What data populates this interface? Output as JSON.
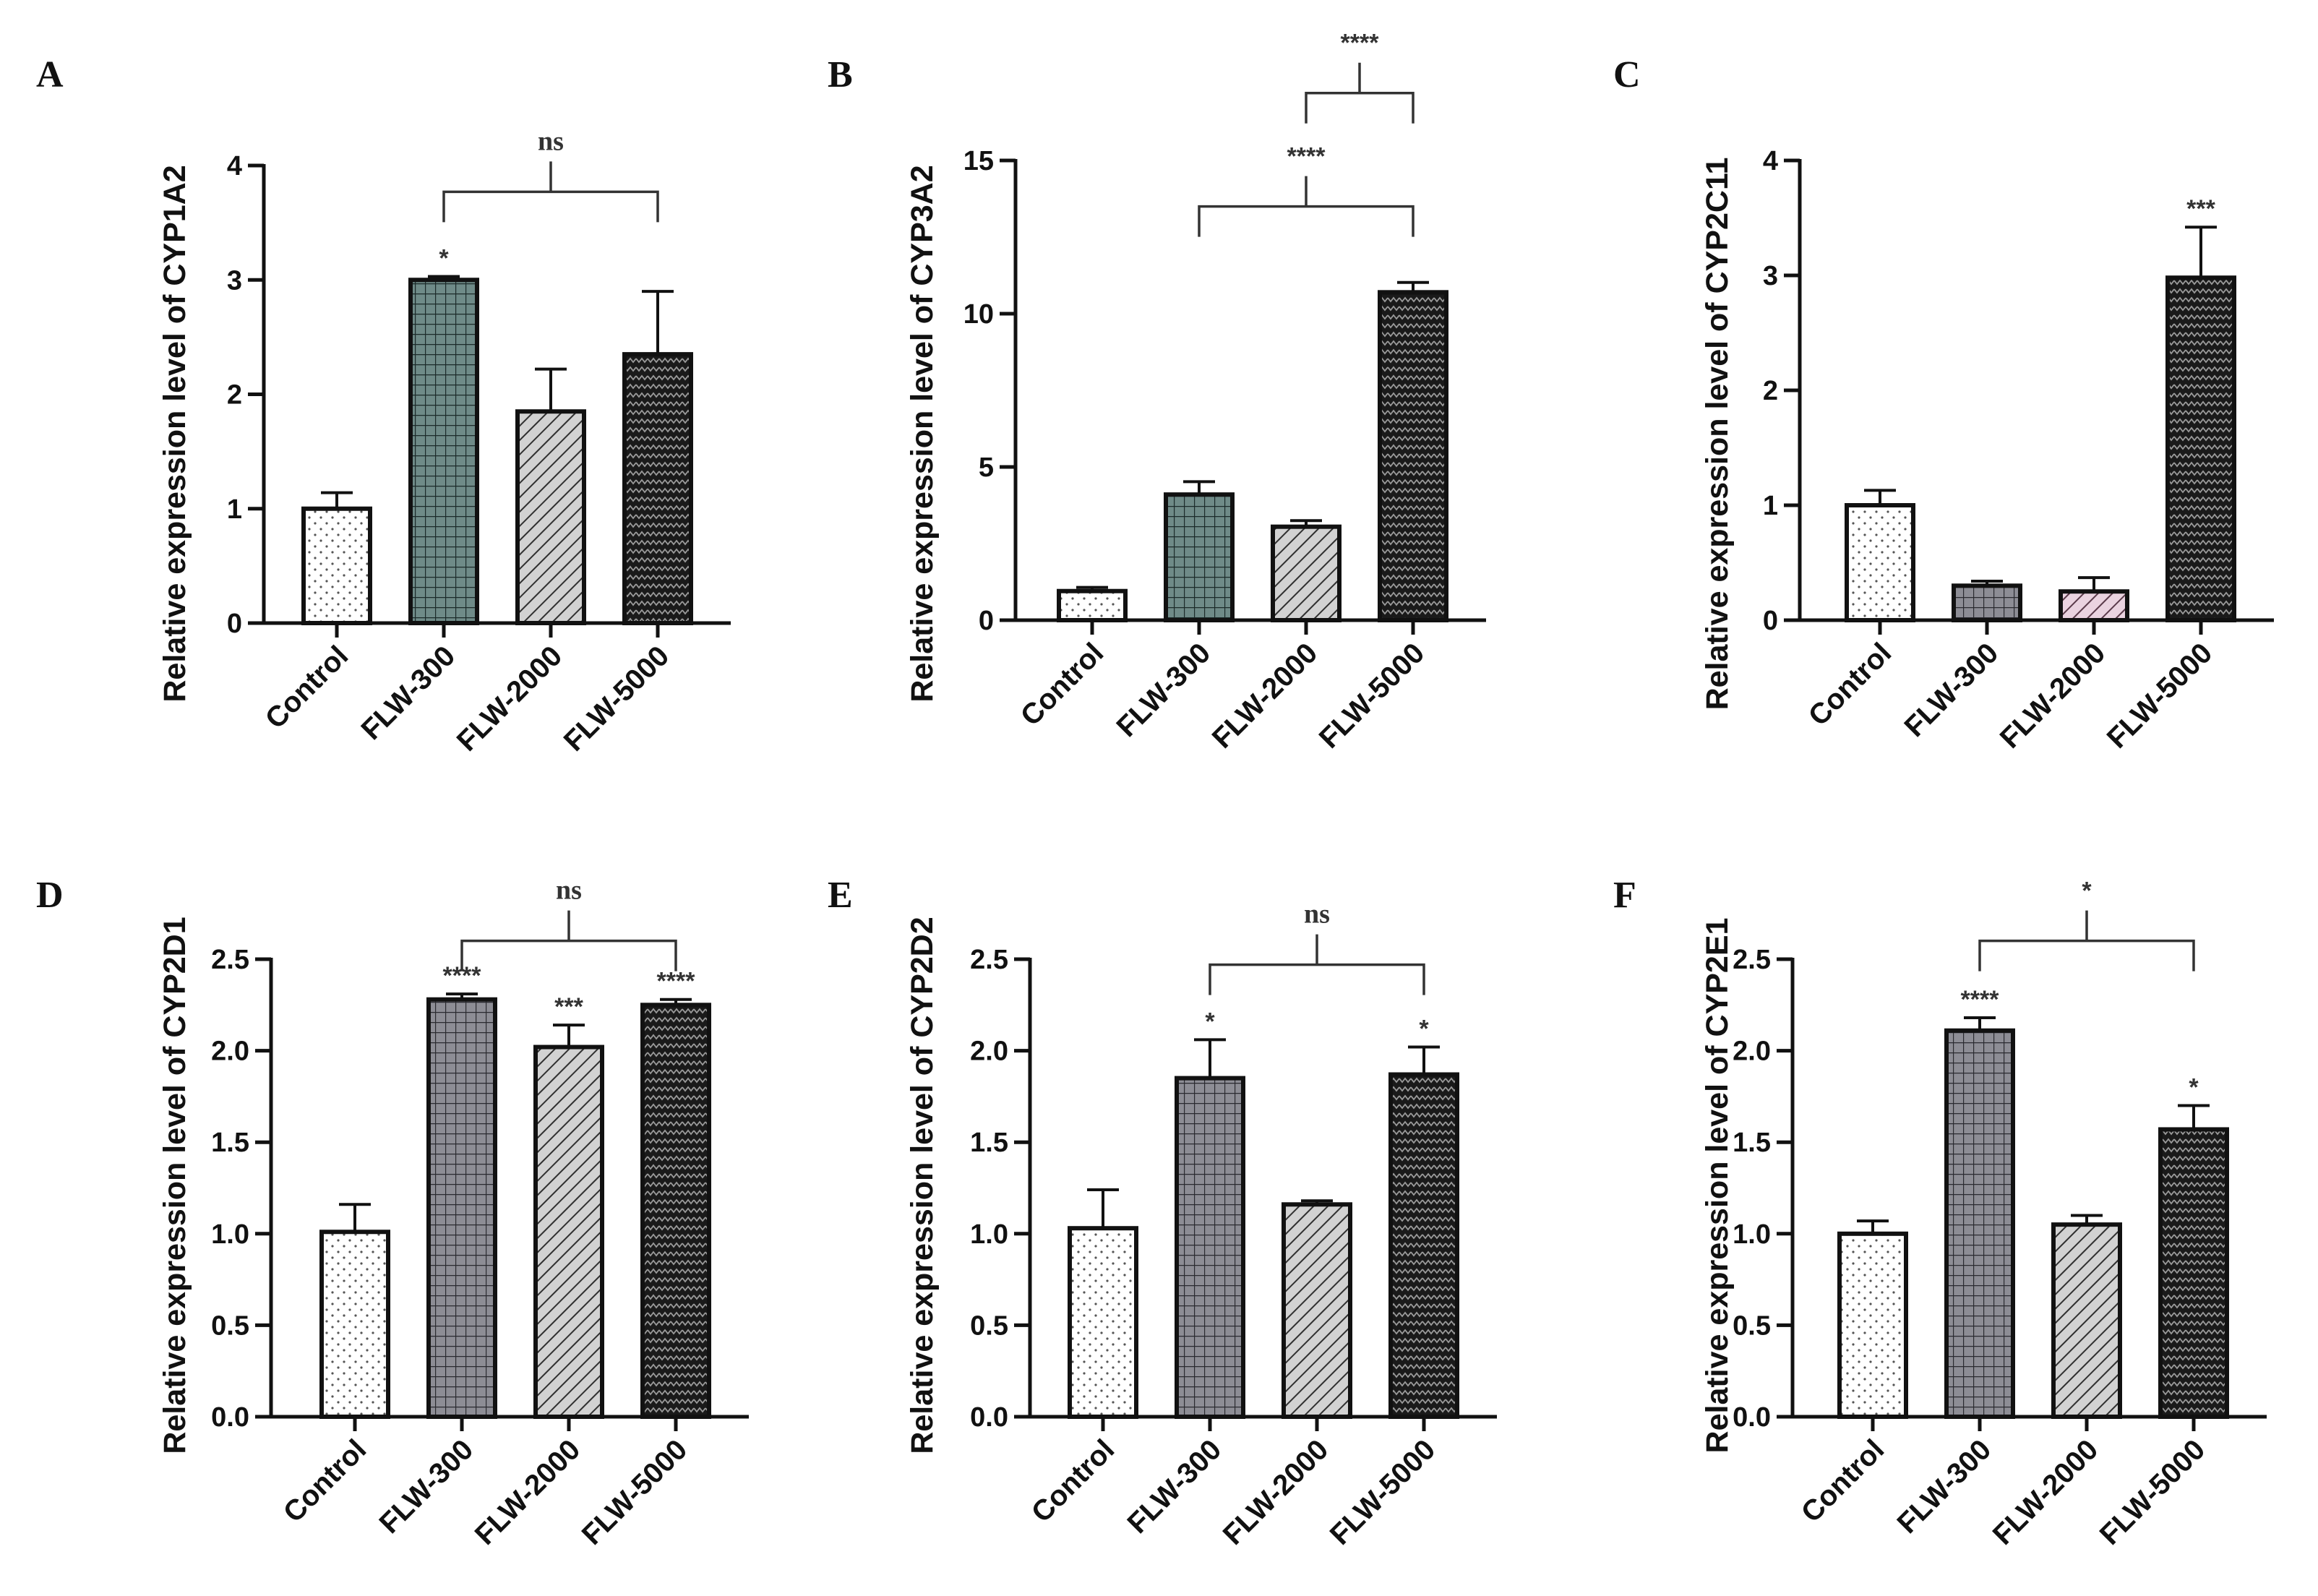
{
  "chart_data": [
    {
      "panel": "A",
      "type": "bar",
      "ylabel": "Relative expression level of CYP1A2",
      "categories": [
        "Control",
        "FLW-300",
        "FLW-2000",
        "FLW-5000"
      ],
      "values": [
        1.0,
        3.0,
        1.85,
        2.35
      ],
      "errors": [
        0.14,
        0.03,
        0.37,
        0.55
      ],
      "ylim": [
        0,
        4
      ],
      "yticks": [
        "0",
        "1",
        "2",
        "3",
        "4"
      ],
      "ytick_values": [
        0,
        1,
        2,
        3,
        4
      ],
      "patterns": [
        "dots",
        "grid-teal",
        "hatch",
        "waves"
      ],
      "stars": [
        "",
        "*",
        "",
        ""
      ],
      "brackets": [
        {
          "from": 1,
          "to": 3,
          "label": "ns",
          "level": 3.77
        }
      ]
    },
    {
      "panel": "B",
      "type": "bar",
      "ylabel": "Relative expression level of CYP3A2",
      "categories": [
        "Control",
        "FLW-300",
        "FLW-2000",
        "FLW-5000"
      ],
      "values": [
        0.95,
        4.1,
        3.05,
        10.7
      ],
      "errors": [
        0.12,
        0.42,
        0.2,
        0.32
      ],
      "ylim": [
        0,
        15
      ],
      "yticks": [
        "0",
        "5",
        "10",
        "15"
      ],
      "ytick_values": [
        0,
        5,
        10,
        15
      ],
      "patterns": [
        "dots",
        "grid-teal",
        "hatch",
        "waves"
      ],
      "stars": [
        "",
        "",
        "",
        ""
      ],
      "brackets": [
        {
          "from": 1,
          "to": 3,
          "label": "****",
          "level": 13.5
        },
        {
          "from": 2,
          "to": 3,
          "label": "****",
          "level": 17.2
        }
      ]
    },
    {
      "panel": "C",
      "type": "bar",
      "ylabel": "Relative expression level of CYP2C11",
      "categories": [
        "Control",
        "FLW-300",
        "FLW-2000",
        "FLW-5000"
      ],
      "values": [
        1.0,
        0.3,
        0.25,
        2.98
      ],
      "errors": [
        0.13,
        0.04,
        0.12,
        0.44
      ],
      "ylim": [
        0,
        4
      ],
      "yticks": [
        "0",
        "1",
        "2",
        "3",
        "4"
      ],
      "ytick_values": [
        0,
        1,
        2,
        3,
        4
      ],
      "patterns": [
        "dots",
        "grid-gray",
        "hatch-pink",
        "waves"
      ],
      "stars": [
        "",
        "",
        "",
        "***"
      ],
      "brackets": []
    },
    {
      "panel": "D",
      "type": "bar",
      "ylabel": "Relative expression level of CYP2D1",
      "categories": [
        "Control",
        "FLW-300",
        "FLW-2000",
        "FLW-5000"
      ],
      "values": [
        1.01,
        2.28,
        2.02,
        2.25
      ],
      "errors": [
        0.15,
        0.03,
        0.12,
        0.03
      ],
      "ylim": [
        0,
        2.5
      ],
      "yticks": [
        "0.0",
        "0.5",
        "1.0",
        "1.5",
        "2.0",
        "2.5"
      ],
      "ytick_values": [
        0,
        0.5,
        1,
        1.5,
        2,
        2.5
      ],
      "patterns": [
        "dots",
        "grid-gray",
        "hatch",
        "waves"
      ],
      "stars": [
        "",
        "****",
        "***",
        "****"
      ],
      "brackets": [
        {
          "from": 1,
          "to": 3,
          "label": "ns",
          "level": 2.6
        }
      ]
    },
    {
      "panel": "E",
      "type": "bar",
      "ylabel": "Relative expression level of CYP2D2",
      "categories": [
        "Control",
        "FLW-300",
        "FLW-2000",
        "FLW-5000"
      ],
      "values": [
        1.03,
        1.85,
        1.16,
        1.87
      ],
      "errors": [
        0.21,
        0.21,
        0.02,
        0.15
      ],
      "ylim": [
        0,
        2.5
      ],
      "yticks": [
        "0.0",
        "0.5",
        "1.0",
        "1.5",
        "2.0",
        "2.5"
      ],
      "ytick_values": [
        0,
        0.5,
        1,
        1.5,
        2,
        2.5
      ],
      "patterns": [
        "dots",
        "grid-gray",
        "hatch",
        "waves"
      ],
      "stars": [
        "",
        "*",
        "",
        "*"
      ],
      "brackets": [
        {
          "from": 1,
          "to": 3,
          "label": "ns",
          "level": 2.47
        }
      ]
    },
    {
      "panel": "F",
      "type": "bar",
      "ylabel": "Relative expression level of CYP2E1",
      "categories": [
        "Control",
        "FLW-300",
        "FLW-2000",
        "FLW-5000"
      ],
      "values": [
        1.0,
        2.11,
        1.05,
        1.57
      ],
      "errors": [
        0.07,
        0.07,
        0.05,
        0.13
      ],
      "ylim": [
        0,
        2.5
      ],
      "yticks": [
        "0.0",
        "0.5",
        "1.0",
        "1.5",
        "2.0",
        "2.5"
      ],
      "ytick_values": [
        0,
        0.5,
        1,
        1.5,
        2,
        2.5
      ],
      "patterns": [
        "dots",
        "grid-gray",
        "hatch",
        "waves"
      ],
      "stars": [
        "",
        "****",
        "",
        "*"
      ],
      "brackets": [
        {
          "from": 1,
          "to": 3,
          "label": "*",
          "level": 2.6
        }
      ]
    }
  ]
}
